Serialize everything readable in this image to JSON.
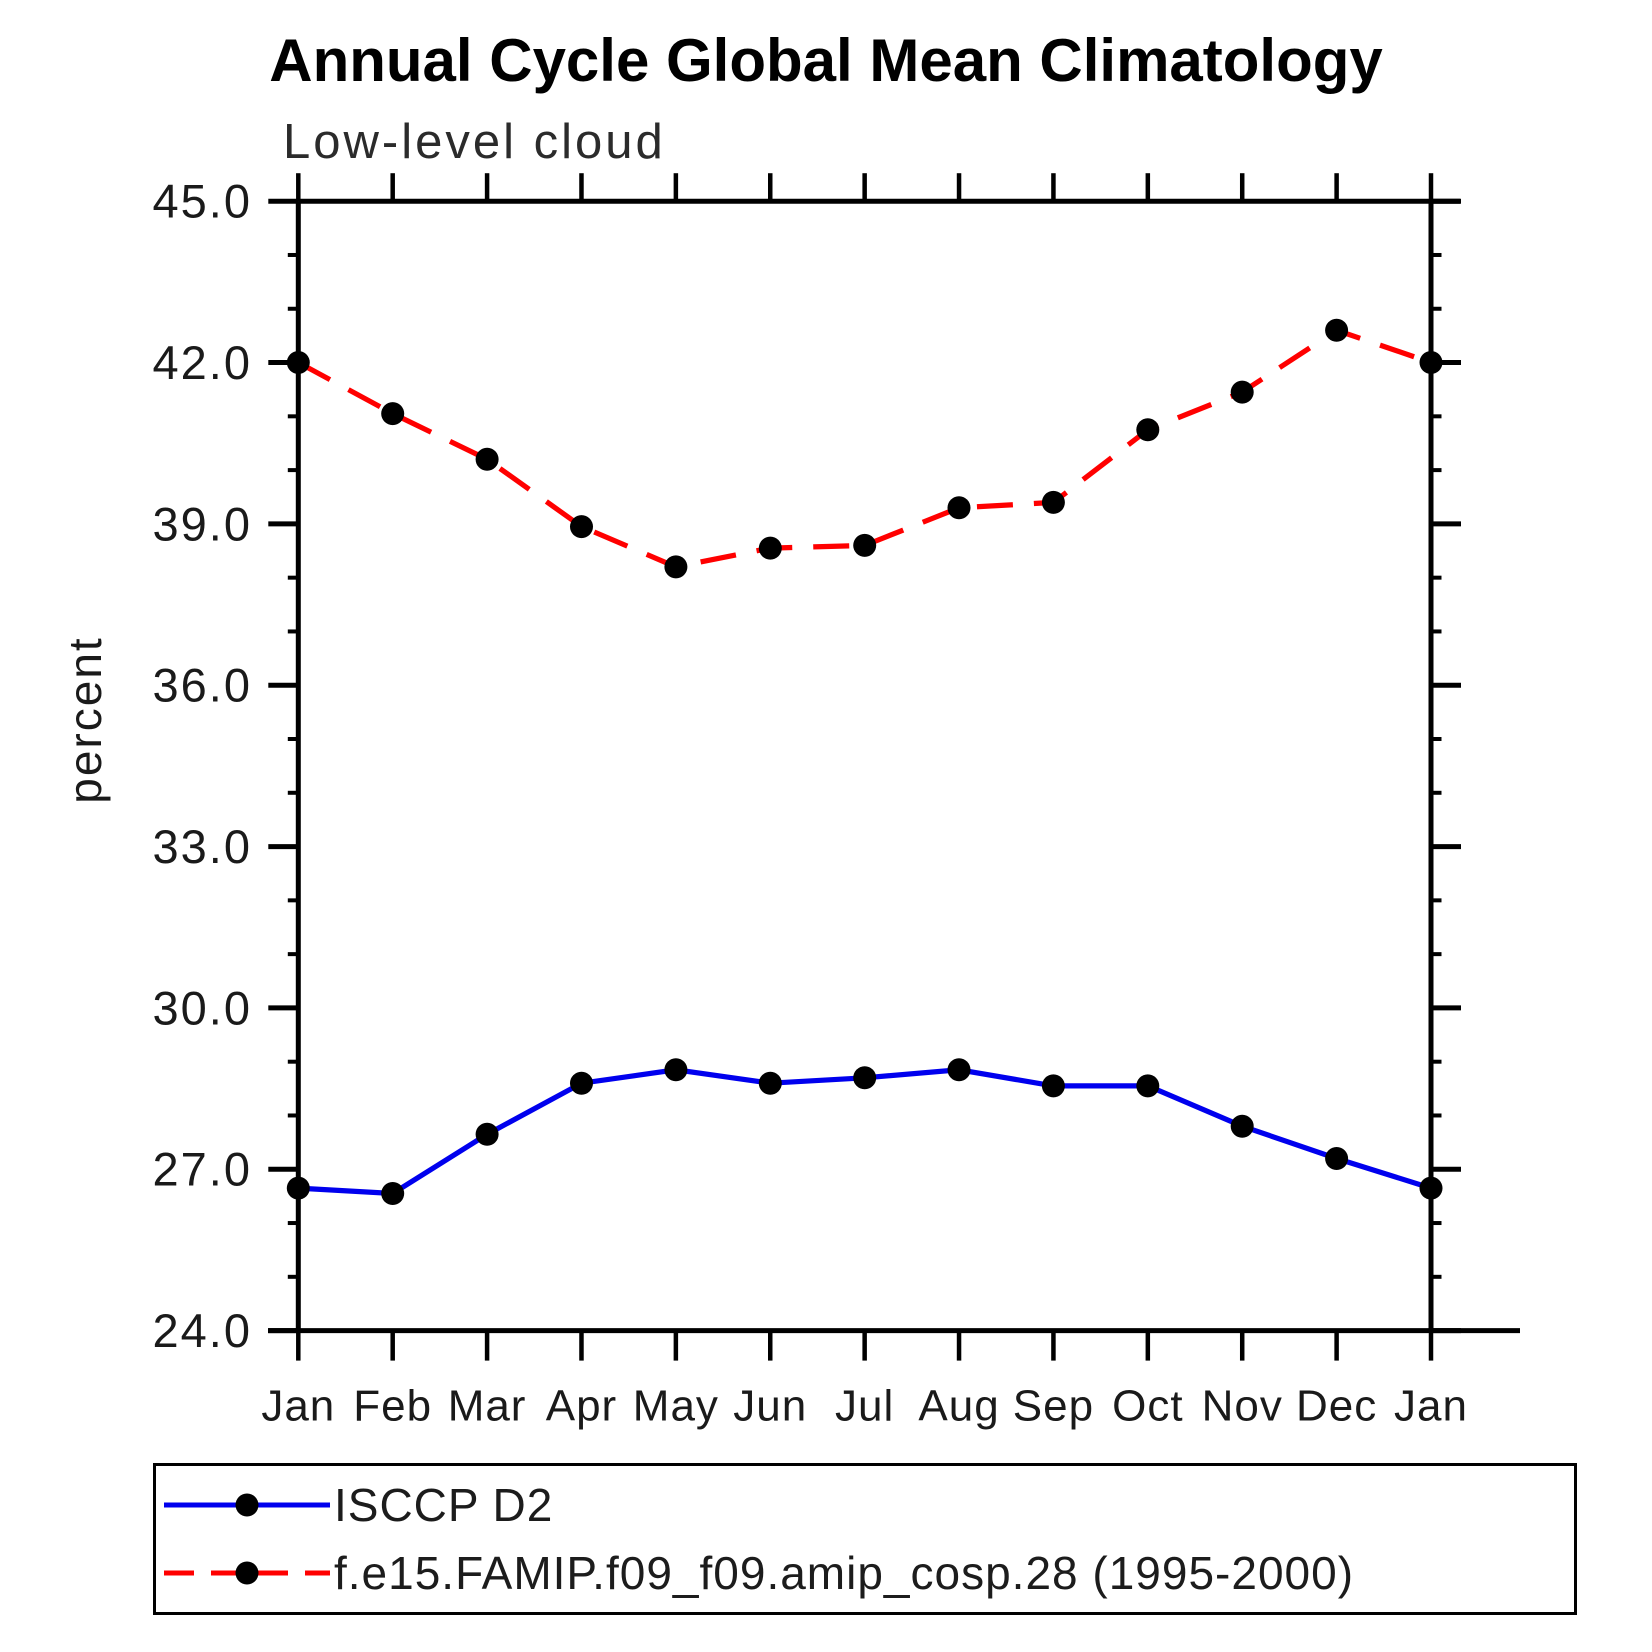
{
  "title": "Annual Cycle Global Mean Climatology",
  "subtitle": "Low-level cloud",
  "ylabel": "percent",
  "legend": {
    "entries": [
      {
        "label": "ISCCP D2",
        "color": "#0000ee",
        "line": "solid"
      },
      {
        "label": "f.e15.FAMIP.f09_f09.amip_cosp.28 (1995-2000)",
        "color": "#ff0000",
        "line": "dashed"
      }
    ]
  },
  "chart_data": {
    "type": "line",
    "title": "Annual Cycle Global Mean Climatology",
    "subtitle": "Low-level cloud",
    "xlabel": "",
    "ylabel": "percent",
    "categories": [
      "Jan",
      "Feb",
      "Mar",
      "Apr",
      "May",
      "Jun",
      "Jul",
      "Aug",
      "Sep",
      "Oct",
      "Nov",
      "Dec",
      "Jan"
    ],
    "series": [
      {
        "name": "ISCCP D2",
        "color": "#0000ee",
        "line": "solid",
        "marker": "circle",
        "marker_color": "#000000",
        "values": [
          26.65,
          26.55,
          27.65,
          28.6,
          28.85,
          28.6,
          28.7,
          28.85,
          28.55,
          28.55,
          27.8,
          27.2,
          26.65
        ]
      },
      {
        "name": "f.e15.FAMIP.f09_f09.amip_cosp.28 (1995-2000)",
        "color": "#ff0000",
        "line": "dashed",
        "marker": "circle",
        "marker_color": "#000000",
        "values": [
          42.0,
          41.05,
          40.2,
          38.95,
          38.2,
          38.55,
          38.6,
          39.3,
          39.4,
          40.75,
          41.45,
          42.6,
          42.0
        ]
      }
    ],
    "ylim": [
      24.0,
      45.0
    ],
    "ymajor_step": 3,
    "yminor_step": 1,
    "ytick_labels": [
      "24.0",
      "27.0",
      "30.0",
      "33.0",
      "36.0",
      "39.0",
      "42.0",
      "45.0"
    ],
    "grid": false,
    "legend_position": "bottom",
    "axis_color": "#000000"
  }
}
